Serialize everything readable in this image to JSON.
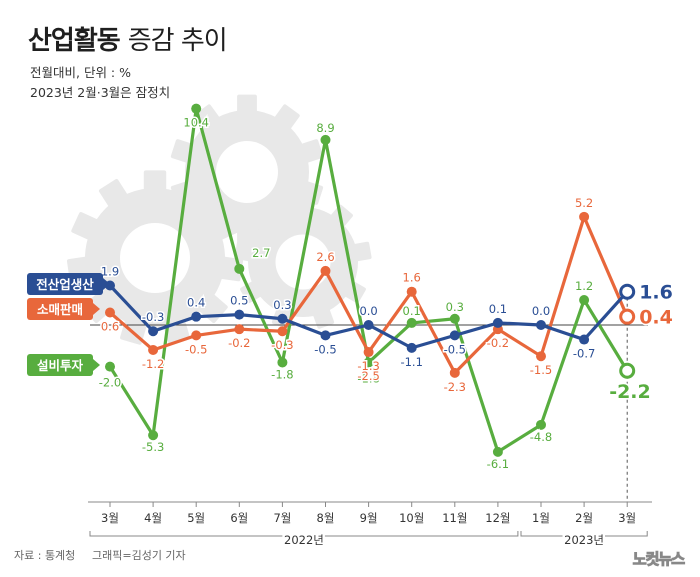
{
  "title": {
    "bold": "산업활동",
    "light": "증감 추이"
  },
  "subtitle_units": "전월대비, 단위 : %",
  "subtitle_note": "2023년 2월·3월은 잠정치",
  "footer": {
    "source": "자료 : 통계청",
    "credit": "그래픽=김성기 기자"
  },
  "brand": "노컷뉴스",
  "colors": {
    "production": "#2a4e94",
    "retail": "#e8673b",
    "investment": "#58ad3f",
    "gear": "#e8e8e8"
  },
  "chart_data": {
    "type": "line",
    "categories": [
      "3월",
      "4월",
      "5월",
      "6월",
      "7월",
      "8월",
      "9월",
      "10월",
      "11월",
      "12월",
      "1월",
      "2월",
      "3월"
    ],
    "year_labels": [
      "2022년",
      "2023년"
    ],
    "ylim": [
      -6.5,
      10.5
    ],
    "grid": false,
    "series": [
      {
        "name": "설비투자",
        "color": "#58ad3f",
        "values": [
          -2.0,
          -5.3,
          10.4,
          2.7,
          -1.8,
          8.9,
          -1.8,
          0.1,
          0.3,
          -6.1,
          -4.8,
          1.2,
          -2.2
        ],
        "labels": [
          "-2.0",
          "-5.3",
          "10.4",
          "2.7",
          "-1.8",
          "8.9",
          "-1.8",
          "0.1",
          "0.3",
          "-6.1",
          "-4.8",
          "1.2",
          "-2.2"
        ]
      },
      {
        "name": "소매판매",
        "color": "#e8673b",
        "values": [
          0.6,
          -1.2,
          -0.5,
          -0.2,
          -0.3,
          2.6,
          -1.3,
          1.6,
          -2.3,
          -0.2,
          -1.5,
          5.2,
          0.4
        ],
        "labels": [
          "0.6",
          "-1.2",
          "-0.5",
          "-0.2",
          "-0.3",
          "2.6",
          "-1.3",
          "1.6",
          "-2.3",
          "-0.2",
          "-1.5",
          "5.2",
          "0.4"
        ]
      },
      {
        "name": "전산업생산",
        "color": "#2a4e94",
        "values": [
          1.9,
          -0.3,
          0.4,
          0.5,
          0.3,
          -0.5,
          0.0,
          -1.1,
          -0.5,
          0.1,
          0.0,
          -0.7,
          1.6
        ],
        "labels": [
          "1.9",
          "-0.3",
          "0.4",
          "0.5",
          "0.3",
          "-0.5",
          "0.0",
          "-1.1",
          "-0.5",
          "0.1",
          "0.0",
          "-0.7",
          "1.6"
        ]
      }
    ],
    "extra_labels": [
      "-2.5"
    ]
  }
}
